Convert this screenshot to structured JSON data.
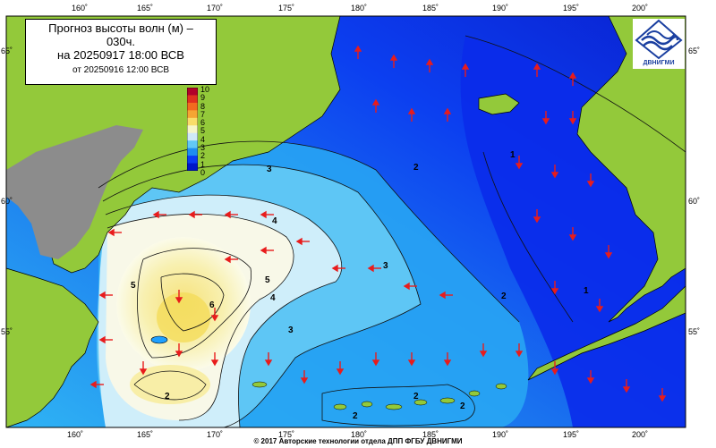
{
  "title": {
    "line1": "Прогноз высоты волн (м) –",
    "line1b": "030ч.",
    "line2": "на 20250917 18:00 ВСВ",
    "line3": "от 20250916 12:00 ВСВ"
  },
  "logo": {
    "text": "ДВНИГМИ",
    "icon": "dvnigmi-logo-icon"
  },
  "footer": "© 2017 Авторские технологии отдела ДПП ФГБУ ДВНИГМИ",
  "axes": {
    "lon_ticks": [
      "160˚",
      "165˚",
      "170˚",
      "175˚",
      "180˚",
      "185˚",
      "190˚",
      "195˚",
      "200˚"
    ],
    "lat_ticks": [
      "65˚",
      "60˚",
      "55˚"
    ]
  },
  "colorbar": {
    "labels": [
      "10",
      "9",
      "8",
      "7",
      "6",
      "5",
      "4",
      "3",
      "2",
      "1",
      "0"
    ],
    "colors": [
      "#b2002a",
      "#e0301f",
      "#f26b1f",
      "#f4a533",
      "#f8dd6a",
      "#f6f6c8",
      "#cfe9f7",
      "#62c8f5",
      "#1f8df0",
      "#0a3bf3",
      "#0016c8"
    ]
  },
  "chart_data": {
    "type": "heatmap",
    "title": "Прогноз высоты волн (м) – 030ч.",
    "colorbar_range": [
      0,
      10
    ],
    "contour_labels": [
      "2",
      "3",
      "4",
      "5",
      "6",
      "1",
      "2",
      "3",
      "4",
      "5",
      "3",
      "2",
      "1",
      "2",
      "2",
      "2"
    ],
    "colors": {
      "land": "#93c93a",
      "land_unmapped": "#8c8c8c",
      "deep_low": "#0a2fe6",
      "arrow": "#e81c1c"
    }
  }
}
